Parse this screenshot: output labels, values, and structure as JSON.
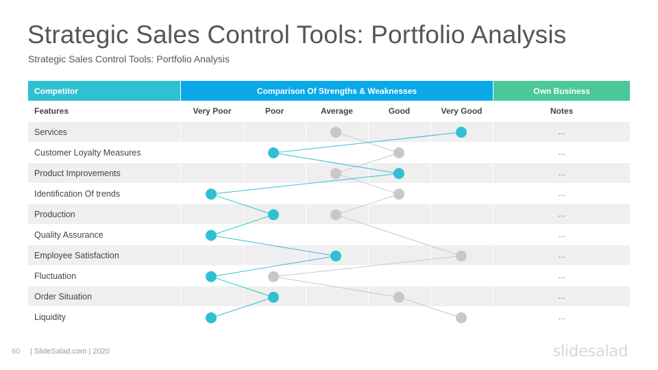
{
  "title": "Strategic Sales Control Tools: Portfolio Analysis",
  "subtitle": "Strategic Sales Control Tools: Portfolio Analysis",
  "headers": {
    "competitor": "Competitor",
    "comparison": "Comparison  Of  Strengths  &  Weaknesses",
    "own_business": "Own Business"
  },
  "subheaders": {
    "features": "Features",
    "notes": "Notes"
  },
  "scale": [
    "Very Poor",
    "Poor",
    "Average",
    "Good",
    "Very Good"
  ],
  "rows": [
    {
      "label": "Services",
      "note": "…"
    },
    {
      "label": "Customer  Loyalty Measures",
      "note": "…"
    },
    {
      "label": "Product  Improvements",
      "note": "…"
    },
    {
      "label": "Identification  Of  trends",
      "note": "…"
    },
    {
      "label": "Production",
      "note": "…"
    },
    {
      "label": "Quality  Assurance",
      "note": "…"
    },
    {
      "label": "Employee  Satisfaction",
      "note": "…"
    },
    {
      "label": "Fluctuation",
      "note": "…"
    },
    {
      "label": "Order  Situation",
      "note": "…"
    },
    {
      "label": "Liquidity",
      "note": "…"
    }
  ],
  "chart_data": {
    "type": "line",
    "categories": [
      "Services",
      "Customer  Loyalty Measures",
      "Product  Improvements",
      "Identification  Of  trends",
      "Production",
      "Quality  Assurance",
      "Employee  Satisfaction",
      "Fluctuation",
      "Order  Situation",
      "Liquidity"
    ],
    "scale": [
      "Very Poor",
      "Poor",
      "Average",
      "Good",
      "Very Good"
    ],
    "series": [
      {
        "values": [
          "Very Good",
          "Poor",
          "Good",
          "Very Poor",
          "Poor",
          "Very Poor",
          "Average",
          "Very Poor",
          "Poor",
          "Very Poor"
        ],
        "color": "#2fc1d2"
      },
      {
        "values": [
          "Average",
          "Good",
          "Average",
          "Good",
          "Average",
          "",
          "Very Good",
          "Poor",
          "Good",
          "Very Good"
        ],
        "color": "#c8c8c8"
      }
    ]
  },
  "footer": {
    "page": "60",
    "text": "| SlideSalad.com | 2020"
  },
  "logo": "slidesalad"
}
